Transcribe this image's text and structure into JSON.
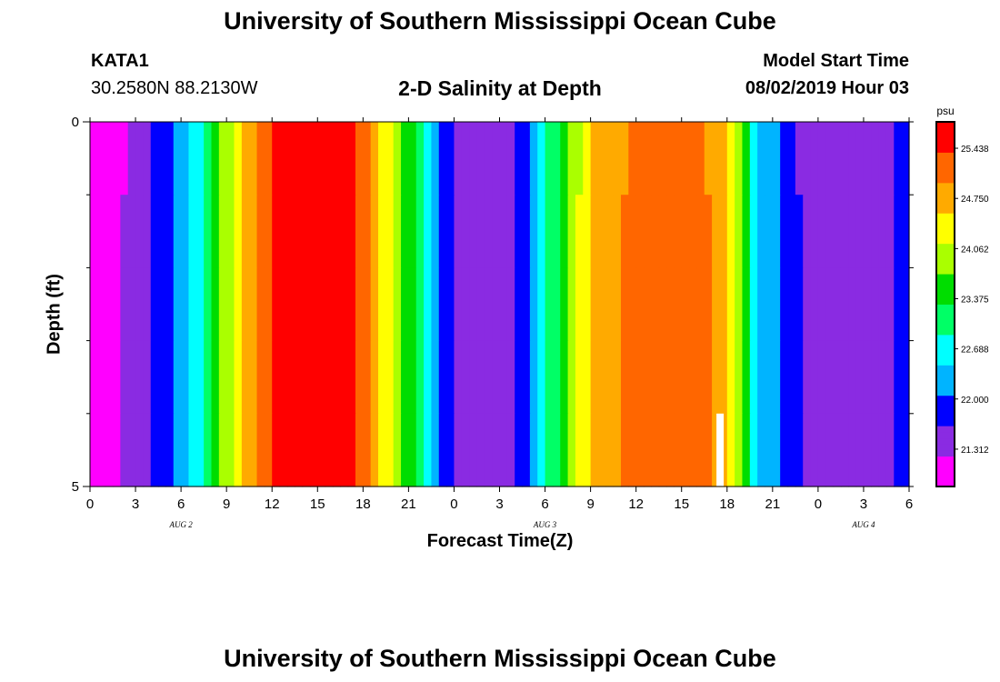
{
  "header": {
    "title": "University of Southern Mississippi Ocean Cube",
    "station": "KATA1",
    "coordinates": "30.2580N 88.2130W",
    "subtitle": "2-D Salinity at Depth",
    "model_start_label": "Model Start Time",
    "model_start_value": "08/02/2019 Hour 03"
  },
  "footer": {
    "title": "University of Southern Mississippi Ocean Cube"
  },
  "chart_data": {
    "type": "heatmap",
    "xlabel": "Forecast Time(Z)",
    "ylabel": "Depth (ft)",
    "x_tick_labels": [
      "0",
      "3",
      "6",
      "9",
      "12",
      "15",
      "18",
      "21",
      "0",
      "3",
      "6",
      "9",
      "12",
      "15",
      "18",
      "21",
      "0",
      "3",
      "6"
    ],
    "date_labels": [
      "AUG 2",
      "AUG 3",
      "AUG 4"
    ],
    "y_tick_labels": [
      "0",
      "5"
    ],
    "ylim": [
      0,
      5
    ],
    "colorbar": {
      "unit": "psu",
      "tick_labels": [
        "25.438",
        "24.750",
        "24.062",
        "23.375",
        "22.688",
        "22.000",
        "21.312"
      ],
      "tick_values": [
        25.438,
        24.75,
        24.062,
        23.375,
        22.688,
        22.0,
        21.312
      ],
      "range": [
        20.8,
        25.8
      ],
      "colors": [
        "#ff00ff",
        "#8a2be2",
        "#0000ff",
        "#00b4ff",
        "#00ffff",
        "#00ff66",
        "#00dd00",
        "#aaff00",
        "#ffff00",
        "#ffaa00",
        "#ff6600",
        "#ff0000"
      ]
    },
    "time_hours": [
      0,
      3,
      6,
      9,
      12,
      15,
      18,
      21,
      24,
      27,
      30,
      33,
      36,
      39,
      42,
      45,
      48,
      51,
      54
    ],
    "depth_rows": [
      0,
      1,
      2,
      3,
      4
    ],
    "salinity_profile": [
      20.95,
      21.15,
      21.85,
      22.7,
      23.9,
      25.0,
      25.65,
      25.65,
      23.5,
      21.9,
      21.25,
      21.3,
      22.1,
      23.4,
      24.55,
      25.1,
      25.25,
      25.1,
      24.7,
      22.5,
      21.55,
      21.45,
      21.7
    ],
    "salinity_profile_hours": [
      0,
      2,
      5,
      7,
      9,
      11,
      13,
      17,
      21,
      23,
      25,
      27,
      29,
      31,
      33,
      36,
      38,
      40,
      42,
      44,
      47,
      51,
      54
    ],
    "depth_offsets": [
      0.0,
      0.1,
      0.2,
      0.25,
      0.3
    ],
    "marker": {
      "hour": 41.3,
      "depth_row": 4,
      "color": "#ffffff"
    }
  }
}
